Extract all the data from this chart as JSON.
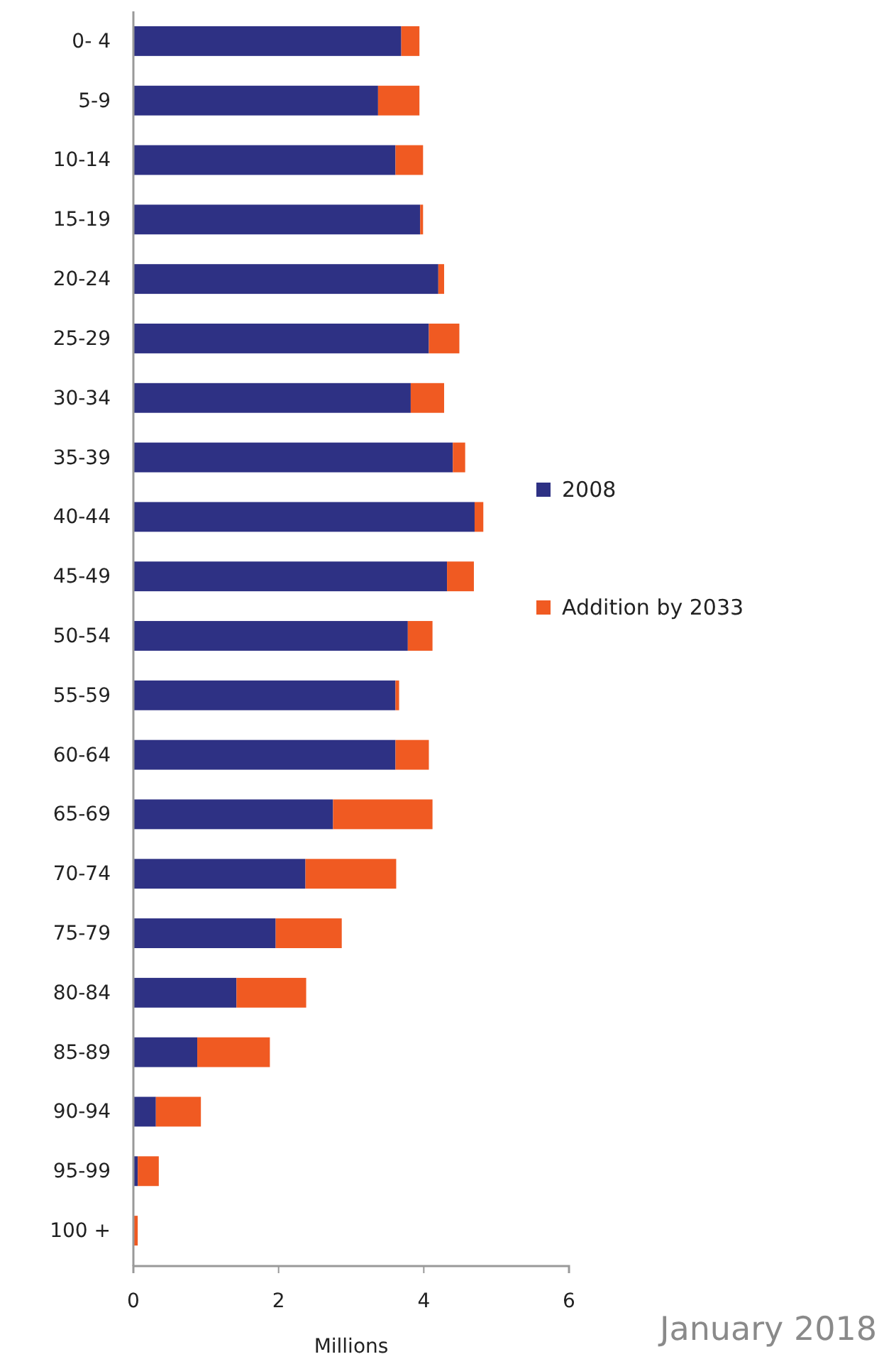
{
  "chart_data": {
    "type": "bar",
    "orientation": "horizontal",
    "stacked": true,
    "categories": [
      "0- 4",
      "5-9",
      "10-14",
      "15-19",
      "20-24",
      "25-29",
      "30-34",
      "35-39",
      "40-44",
      "45-49",
      "50-54",
      "55-59",
      "60-64",
      "65-69",
      "70-74",
      "75-79",
      "80-84",
      "85-89",
      "90-94",
      "95-99",
      "100 +"
    ],
    "series": [
      {
        "name": "2008",
        "color": "#2e3184",
        "values": [
          3.69,
          3.37,
          3.61,
          3.95,
          4.2,
          4.07,
          3.82,
          4.4,
          4.7,
          4.32,
          3.78,
          3.61,
          3.61,
          2.75,
          2.37,
          1.96,
          1.42,
          0.88,
          0.31,
          0.06,
          null
        ]
      },
      {
        "name": "Addition by 2033",
        "color": "#f05a22",
        "values": [
          0.25,
          0.57,
          0.38,
          0.04,
          0.08,
          0.42,
          0.46,
          0.17,
          0.12,
          0.37,
          0.34,
          0.05,
          0.46,
          1.37,
          1.25,
          0.91,
          0.96,
          1.0,
          0.62,
          0.29,
          0.06
        ]
      }
    ],
    "xlim": [
      0,
      6
    ],
    "xticks": [
      0,
      2,
      4,
      6
    ],
    "xlabel": "Millions",
    "legend": "right",
    "annotations": [
      "January 2018"
    ]
  }
}
